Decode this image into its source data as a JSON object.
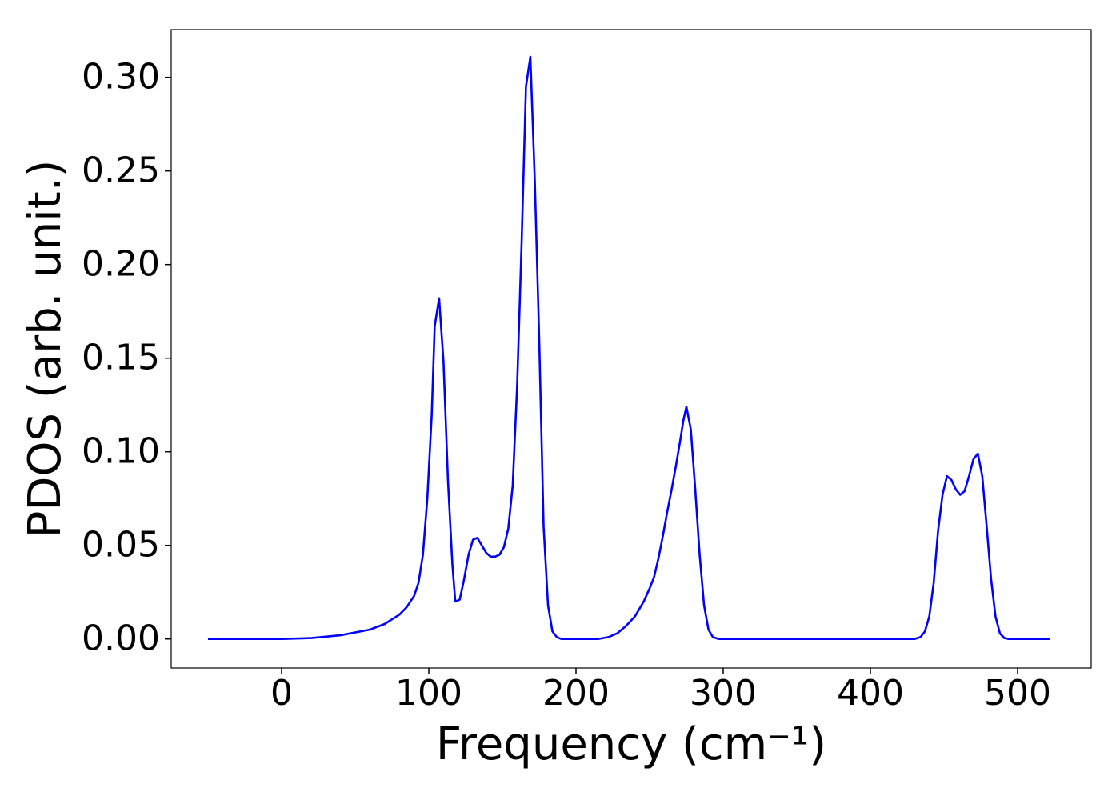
{
  "chart_data": {
    "type": "line",
    "xlabel": "Frequency (cm⁻¹)",
    "ylabel": "PDOS (arb. unit.)",
    "x": [
      -50,
      0,
      20,
      40,
      60,
      70,
      80,
      85,
      90,
      93,
      96,
      99,
      102,
      104,
      107,
      110,
      113,
      116,
      118,
      121,
      124,
      127,
      130,
      133,
      136,
      139,
      142,
      145,
      148,
      151,
      154,
      157,
      160,
      163,
      166,
      169,
      172,
      175,
      178,
      181,
      184,
      187,
      190,
      215,
      222,
      228,
      234,
      240,
      246,
      250,
      253,
      256,
      259,
      262,
      265,
      268,
      271,
      273,
      275,
      278,
      281,
      284,
      287,
      290,
      293,
      297,
      430,
      434,
      437,
      440,
      443,
      446,
      449,
      452,
      455,
      458,
      461,
      464,
      467,
      470,
      473,
      476,
      479,
      482,
      485,
      488,
      491,
      494,
      522
    ],
    "series": [
      {
        "name": "PDOS",
        "color": "#0000ff",
        "values": [
          0,
          0,
          0.0005,
          0.002,
          0.005,
          0.008,
          0.013,
          0.017,
          0.023,
          0.03,
          0.045,
          0.075,
          0.12,
          0.167,
          0.182,
          0.148,
          0.085,
          0.04,
          0.02,
          0.021,
          0.032,
          0.045,
          0.053,
          0.054,
          0.05,
          0.046,
          0.044,
          0.044,
          0.045,
          0.049,
          0.059,
          0.082,
          0.135,
          0.21,
          0.295,
          0.311,
          0.245,
          0.16,
          0.06,
          0.018,
          0.004,
          0.001,
          0,
          0,
          0.001,
          0.003,
          0.007,
          0.012,
          0.02,
          0.027,
          0.033,
          0.043,
          0.055,
          0.068,
          0.08,
          0.093,
          0.107,
          0.117,
          0.124,
          0.112,
          0.08,
          0.045,
          0.018,
          0.005,
          0.001,
          0,
          0,
          0.001,
          0.004,
          0.012,
          0.03,
          0.058,
          0.077,
          0.087,
          0.085,
          0.08,
          0.077,
          0.079,
          0.087,
          0.096,
          0.099,
          0.087,
          0.06,
          0.032,
          0.012,
          0.003,
          0.0005,
          0,
          0
        ]
      }
    ],
    "xlim": [
      -75,
      550
    ],
    "ylim": [
      -0.0155,
      0.3255
    ],
    "xticks": [
      0,
      100,
      200,
      300,
      400,
      500
    ],
    "yticks": [
      {
        "value": 0,
        "label": "0.00"
      },
      {
        "value": 0.05,
        "label": "0.05"
      },
      {
        "value": 0.1,
        "label": "0.10"
      },
      {
        "value": 0.15,
        "label": "0.15"
      },
      {
        "value": 0.2,
        "label": "0.20"
      },
      {
        "value": 0.25,
        "label": "0.25"
      },
      {
        "value": 0.3,
        "label": "0.30"
      }
    ],
    "grid": false
  }
}
